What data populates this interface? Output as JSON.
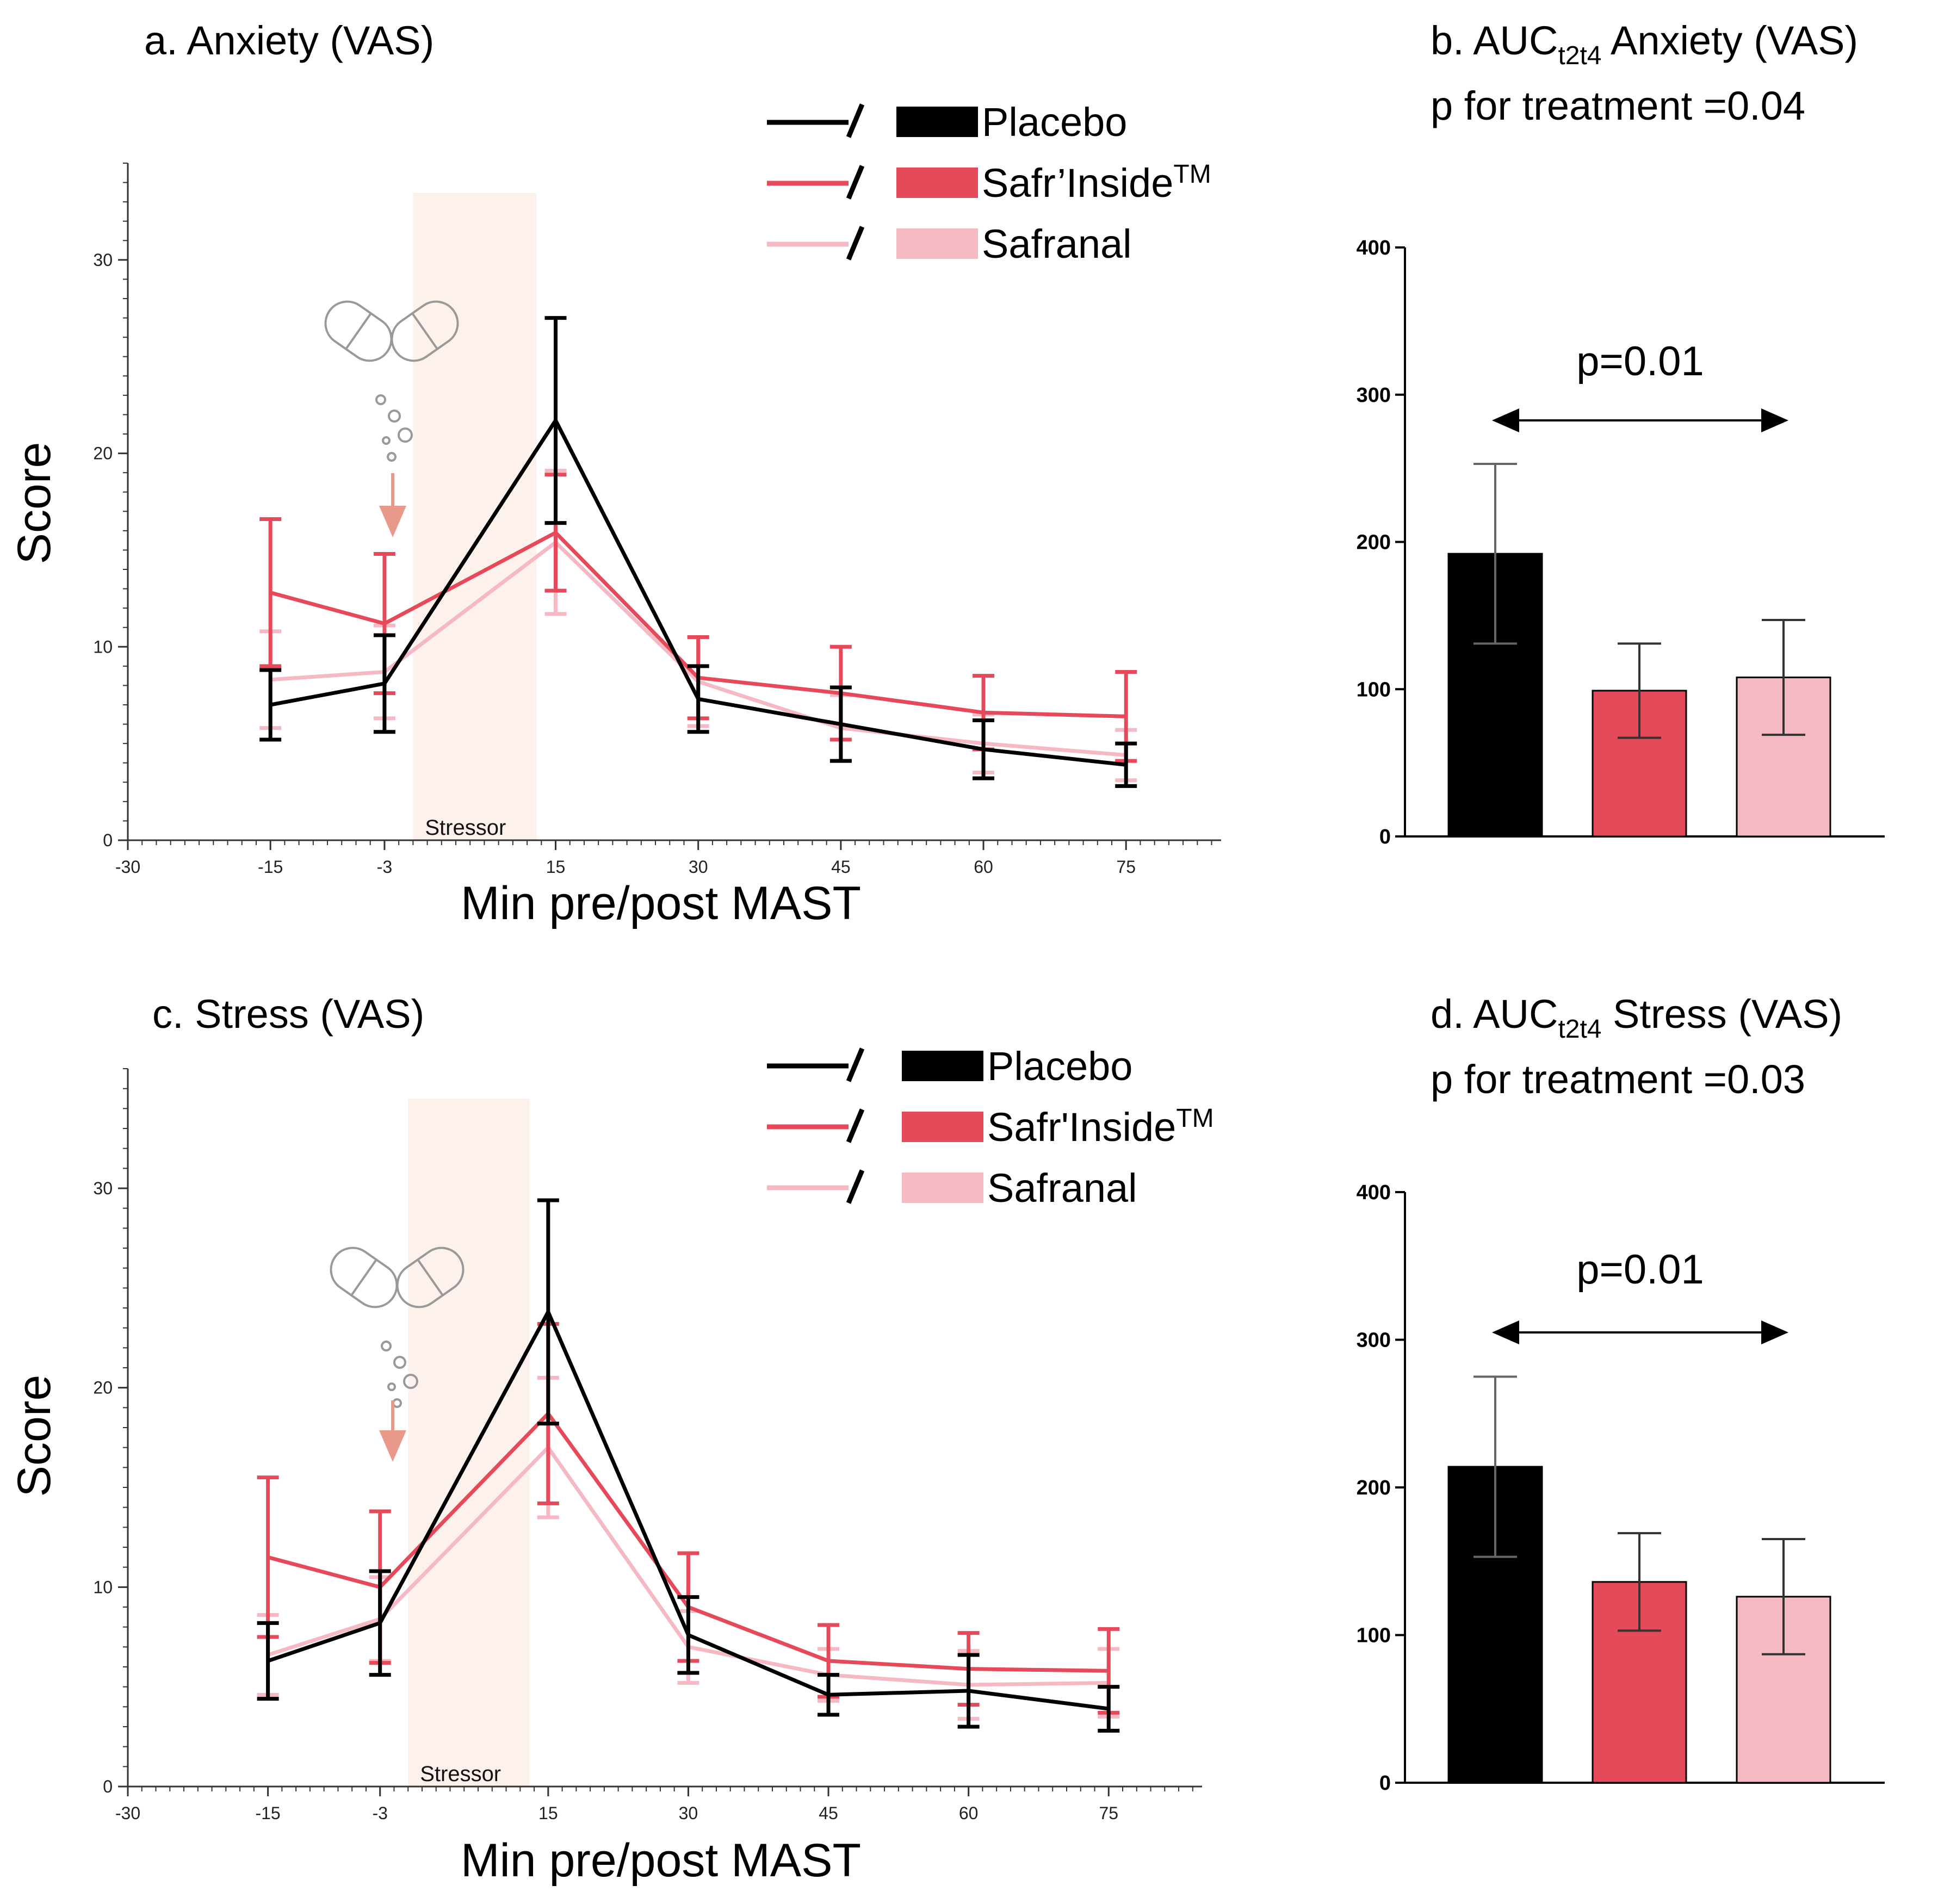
{
  "colors": {
    "placebo": "#000000",
    "safrinside": "#e64a5a",
    "safranal": "#f4b9c3",
    "stressor_band": "#fdf1ec",
    "arrow": "#e8998a",
    "axis": "#333333"
  },
  "legend": {
    "placebo": "Placebo",
    "safrinside": "Safr’Inside",
    "safrinside_c": "Safr'Inside",
    "tm": "TM",
    "safranal": "Safranal"
  },
  "chart_data": [
    {
      "id": "a",
      "type": "line",
      "title": "a. Anxiety (VAS)",
      "xlabel": "Min pre/post MAST",
      "ylabel": "Score",
      "xlim": [
        -30,
        85
      ],
      "ylim": [
        0,
        35
      ],
      "x_ticks": [
        -30,
        -15,
        -3,
        15,
        30,
        45,
        60,
        75
      ],
      "y_ticks": [
        0,
        10,
        20,
        30
      ],
      "band": {
        "x0": 0,
        "x1": 13,
        "label": "Stressor"
      },
      "x": [
        -15,
        -3,
        15,
        30,
        45,
        60,
        75
      ],
      "series": [
        {
          "name": "Placebo",
          "values": [
            7.0,
            8.1,
            21.7,
            7.3,
            6.0,
            4.7,
            3.9
          ],
          "err": [
            1.8,
            2.5,
            5.3,
            1.7,
            1.9,
            1.5,
            1.1
          ]
        },
        {
          "name": "Safr’Inside",
          "values": [
            12.8,
            11.2,
            15.9,
            8.4,
            7.6,
            6.6,
            6.4
          ],
          "err": [
            3.8,
            3.6,
            3.0,
            2.1,
            2.4,
            1.9,
            2.3
          ]
        },
        {
          "name": "Safranal",
          "values": [
            8.3,
            8.7,
            15.4,
            8.2,
            5.8,
            5.0,
            4.4
          ],
          "err": [
            2.5,
            2.4,
            3.7,
            2.3,
            1.7,
            1.5,
            1.3
          ]
        }
      ]
    },
    {
      "id": "b",
      "type": "bar",
      "title_prefix": "b. AUC",
      "title_sub": "t2t4",
      "title_rest": " Anxiety (VAS)",
      "subtitle": "p for treatment =0.04",
      "categories": [
        "Placebo",
        "Safr’Inside",
        "Safranal"
      ],
      "values": [
        192,
        99,
        108
      ],
      "err": [
        61,
        32,
        39
      ],
      "ylim": [
        0,
        400
      ],
      "y_ticks": [
        0,
        100,
        200,
        300,
        400
      ],
      "comparison": "p=0.01"
    },
    {
      "id": "c",
      "type": "line",
      "title": "c. Stress (VAS)",
      "xlabel": "Min pre/post MAST",
      "ylabel": "Score",
      "xlim": [
        -30,
        85
      ],
      "ylim": [
        0,
        36
      ],
      "x_ticks": [
        -30,
        -15,
        -3,
        15,
        30,
        45,
        60,
        75
      ],
      "y_ticks": [
        0,
        10,
        20,
        30
      ],
      "band": {
        "x0": 0,
        "x1": 13,
        "label": "Stressor"
      },
      "x": [
        -15,
        -3,
        15,
        30,
        45,
        60,
        75
      ],
      "series": [
        {
          "name": "Placebo",
          "values": [
            6.3,
            8.2,
            23.8,
            7.6,
            4.6,
            4.8,
            3.9
          ],
          "err": [
            1.9,
            2.6,
            5.6,
            1.9,
            1.0,
            1.8,
            1.1
          ]
        },
        {
          "name": "Safr'Inside",
          "values": [
            11.5,
            10.0,
            18.7,
            9.0,
            6.3,
            5.9,
            5.8
          ],
          "err": [
            4.0,
            3.8,
            4.5,
            2.7,
            1.8,
            1.8,
            2.1
          ]
        },
        {
          "name": "Safranal",
          "values": [
            6.6,
            8.4,
            17.0,
            7.0,
            5.6,
            5.1,
            5.2
          ],
          "err": [
            2.0,
            2.1,
            3.5,
            1.8,
            1.3,
            1.7,
            1.7
          ]
        }
      ]
    },
    {
      "id": "d",
      "type": "bar",
      "title_prefix": "d. AUC",
      "title_sub": "t2t4",
      "title_rest": " Stress (VAS)",
      "subtitle": "p for treatment =0.03",
      "categories": [
        "Placebo",
        "Safr'Inside",
        "Safranal"
      ],
      "values": [
        214,
        136,
        126
      ],
      "err": [
        61,
        33,
        39
      ],
      "ylim": [
        0,
        400
      ],
      "y_ticks": [
        0,
        100,
        200,
        300,
        400
      ],
      "comparison": "p=0.01"
    }
  ]
}
